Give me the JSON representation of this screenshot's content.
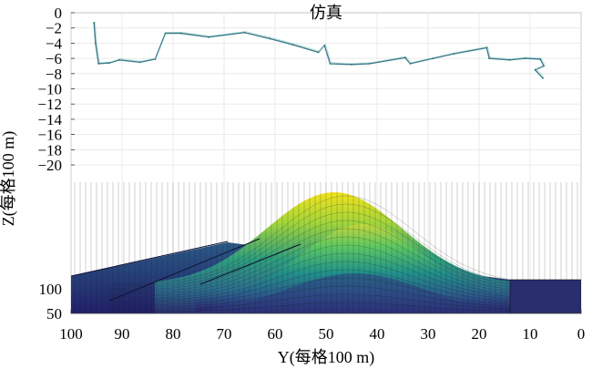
{
  "chart_data": {
    "type": "surface3d",
    "title": "仿真",
    "xlabel": "Y(每格100 m)",
    "ylabel": "Z(每格100 m)",
    "y_ticks": [
      "0",
      "−2",
      "−4",
      "−6",
      "−8",
      "−10",
      "−12",
      "−14",
      "−16",
      "−18",
      "−20"
    ],
    "x_ticks": [
      "100",
      "90",
      "80",
      "70",
      "60",
      "50",
      "40",
      "30",
      "20",
      "10",
      "0"
    ],
    "depth_ticks": [
      "100",
      "50"
    ],
    "ylim": [
      -21,
      0
    ],
    "xlim": [
      100,
      0
    ],
    "grid": true,
    "colormap": [
      "#2b1e6e",
      "#2c5a8c",
      "#21918c",
      "#5ec962",
      "#c7d93a",
      "#f2e21d"
    ],
    "series": [
      {
        "name": "trajectory",
        "points": [
          {
            "y": 95.5,
            "z": -1.3
          },
          {
            "y": 95.2,
            "z": -4.0
          },
          {
            "y": 94.6,
            "z": -6.7
          },
          {
            "y": 92.5,
            "z": -6.6
          },
          {
            "y": 90.5,
            "z": -6.2
          },
          {
            "y": 86.5,
            "z": -6.5
          },
          {
            "y": 83.5,
            "z": -6.1
          },
          {
            "y": 81.5,
            "z": -2.7
          },
          {
            "y": 78.5,
            "z": -2.7
          },
          {
            "y": 73.0,
            "z": -3.2
          },
          {
            "y": 66.0,
            "z": -2.6
          },
          {
            "y": 61.0,
            "z": -3.4
          },
          {
            "y": 56.5,
            "z": -4.2
          },
          {
            "y": 51.5,
            "z": -5.2
          },
          {
            "y": 50.3,
            "z": -4.3
          },
          {
            "y": 49.2,
            "z": -6.7
          },
          {
            "y": 45.0,
            "z": -6.8
          },
          {
            "y": 41.5,
            "z": -6.7
          },
          {
            "y": 34.5,
            "z": -5.9
          },
          {
            "y": 33.5,
            "z": -6.7
          },
          {
            "y": 29.0,
            "z": -6.0
          },
          {
            "y": 25.0,
            "z": -5.4
          },
          {
            "y": 18.5,
            "z": -4.6
          },
          {
            "y": 18.0,
            "z": -6.0
          },
          {
            "y": 14.0,
            "z": -6.2
          },
          {
            "y": 11.0,
            "z": -6.0
          },
          {
            "y": 8.0,
            "z": -6.1
          },
          {
            "y": 7.3,
            "z": -7.0
          },
          {
            "y": 9.0,
            "z": -7.5
          },
          {
            "y": 7.5,
            "z": -8.6
          }
        ]
      }
    ]
  }
}
